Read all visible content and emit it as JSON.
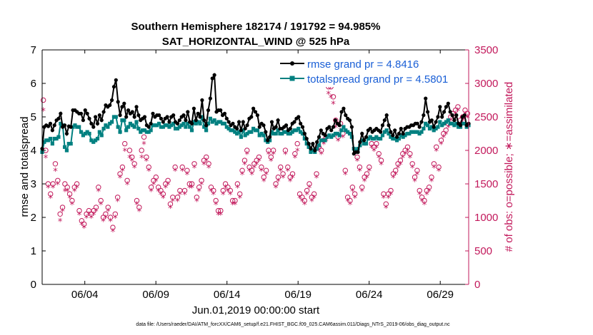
{
  "chart_data": {
    "type": "line",
    "title": "Southern Hemisphere 182174 / 191792 = 94.985%",
    "subtitle": "SAT_HORIZONTAL_WIND @ 525 hPa",
    "xlabel": "Jun.01,2019 00:00:00 start",
    "ylabel_left": "rmse and totalspread",
    "ylabel_right": "# of obs: o=possible; ∗=assimilated",
    "ylim_left": [
      0,
      7
    ],
    "ylim_right": [
      0,
      3500
    ],
    "xlim": [
      0,
      30
    ],
    "yticks_left": [
      "0",
      "1",
      "2",
      "3",
      "4",
      "5",
      "6",
      "7"
    ],
    "yticks_right": [
      "0",
      "500",
      "1000",
      "1500",
      "2000",
      "2500",
      "3000",
      "3500"
    ],
    "xticks": [
      {
        "label": "06/04",
        "day": 3
      },
      {
        "label": "06/09",
        "day": 8
      },
      {
        "label": "06/14",
        "day": 13
      },
      {
        "label": "06/19",
        "day": 18
      },
      {
        "label": "06/24",
        "day": 23
      },
      {
        "label": "06/29",
        "day": 28
      }
    ],
    "legend": [
      {
        "name": "rmse grand pr = 4.8416",
        "color": "#000000"
      },
      {
        "name": "totalspread grand pr = 4.5801",
        "color": "#008080"
      }
    ],
    "colors": {
      "rmse": "#000000",
      "spread": "#008080",
      "obs": "#c2185b"
    },
    "footer": "data file: /Users/raeder/DAI/ATM_forcXX/CAM6_setup/f.e21.FHIST_BGC.f09_025.CAM6assim.011/Diags_NTrS_2019-06/obs_diag_output.nc",
    "series": {
      "rmse": [
        4.05,
        4.7,
        4.75,
        4.72,
        4.8,
        4.6,
        4.75,
        4.9,
        4.95,
        5.1,
        4.7,
        4.75,
        4.5,
        4.72,
        4.7,
        5.2,
        5.2,
        5.15,
        5.1,
        5.1,
        4.9,
        5.2,
        5.1,
        4.95,
        4.8,
        4.7,
        5.0,
        4.8,
        5.05,
        4.9,
        5.15,
        5.35,
        5.3,
        5.35,
        5.5,
        5.9,
        6.1,
        5.45,
        5.05,
        5.3,
        5.4,
        5.0,
        5.2,
        5.1,
        5.15,
        5.0,
        5.3,
        5.05,
        4.9,
        4.95,
        5.0,
        4.75,
        4.7,
        4.8,
        5.1,
        5.0,
        5.05,
        5.05,
        4.95,
        4.85,
        4.95,
        5.0,
        4.85,
        5.0,
        5.05,
        4.85,
        4.8,
        4.9,
        5.0,
        5.05,
        4.9,
        5.15,
        4.85,
        4.8,
        5.25,
        4.9,
        5.1,
        5.0,
        5.5,
        4.9,
        4.75,
        5.2,
        5.55,
        6.15,
        6.25,
        5.15,
        5.2,
        5.2,
        5.05,
        5.1,
        4.95,
        4.85,
        4.75,
        4.8,
        4.7,
        4.65,
        4.85,
        4.6,
        4.85,
        4.65,
        4.75,
        4.95,
        5.0,
        5.25,
        5.15,
        5.05,
        4.7,
        4.8,
        4.75,
        4.55,
        4.3,
        4.4,
        4.85,
        4.65,
        4.7,
        4.9,
        4.65,
        4.65,
        4.7,
        4.75,
        4.6,
        4.65,
        4.8,
        4.85,
        4.95,
        5.0,
        4.8,
        4.7,
        4.5,
        4.35,
        4.2,
        4.05,
        4.2,
        4.0,
        4.25,
        4.4,
        4.6,
        4.5,
        4.45,
        4.65,
        4.7,
        4.6,
        4.7,
        4.9,
        4.8,
        4.75,
        5.15,
        5.25,
        5.05,
        4.95,
        4.9,
        4.7,
        3.9,
        3.95,
        3.95,
        4.25,
        4.5,
        4.3,
        4.4,
        4.6,
        4.65,
        4.55,
        4.6,
        4.65,
        4.6,
        4.55,
        4.75,
        4.9,
        5.05,
        4.75,
        4.55,
        4.45,
        4.6,
        4.4,
        4.5,
        4.65,
        4.5,
        4.65,
        4.7,
        4.7,
        4.75,
        4.75,
        4.8,
        4.8,
        4.7,
        4.85,
        5.05,
        5.55,
        5.15,
        4.85,
        4.9,
        4.7,
        4.85,
        5.0,
        5.3,
        5.0,
        5.15,
        5.3,
        5.4,
        5.15,
        5.05,
        4.9,
        5.05,
        4.8,
        4.75,
        5.0,
        5.05,
        4.75,
        4.8
      ],
      "spread": [
        3.95,
        4.25,
        4.3,
        4.3,
        4.35,
        4.2,
        4.35,
        4.35,
        4.4,
        4.8,
        4.75,
        4.1,
        4.0,
        4.2,
        4.2,
        4.7,
        4.75,
        4.7,
        4.7,
        4.55,
        4.45,
        4.5,
        4.55,
        4.5,
        4.3,
        4.25,
        4.3,
        4.35,
        4.55,
        4.45,
        4.65,
        4.75,
        4.7,
        4.8,
        4.85,
        5.0,
        5.0,
        4.7,
        4.55,
        4.9,
        4.9,
        4.6,
        4.7,
        4.8,
        4.75,
        4.7,
        4.85,
        4.65,
        4.55,
        4.6,
        4.6,
        4.55,
        4.55,
        4.6,
        4.75,
        4.75,
        4.75,
        4.8,
        4.7,
        4.7,
        4.75,
        4.75,
        4.7,
        4.75,
        4.8,
        4.65,
        4.65,
        4.7,
        4.75,
        4.8,
        4.7,
        4.8,
        4.7,
        4.6,
        4.85,
        4.8,
        4.85,
        4.8,
        5.0,
        4.7,
        4.6,
        4.8,
        4.95,
        4.85,
        4.9,
        4.8,
        4.85,
        4.85,
        4.8,
        4.8,
        4.7,
        4.65,
        4.6,
        4.6,
        4.55,
        4.5,
        4.55,
        4.4,
        4.6,
        4.45,
        4.5,
        4.55,
        4.55,
        4.65,
        4.6,
        4.6,
        4.45,
        4.5,
        4.45,
        4.3,
        4.25,
        4.3,
        4.55,
        4.5,
        4.5,
        4.6,
        4.5,
        4.5,
        4.55,
        4.55,
        4.5,
        4.5,
        4.55,
        4.6,
        4.6,
        4.65,
        4.55,
        4.5,
        4.35,
        4.2,
        4.1,
        3.95,
        4.0,
        3.95,
        4.05,
        4.15,
        4.3,
        4.3,
        4.3,
        4.4,
        4.45,
        4.4,
        4.45,
        4.5,
        4.5,
        4.45,
        4.6,
        4.7,
        4.6,
        4.55,
        4.5,
        4.4,
        4.05,
        4.0,
        4.05,
        4.15,
        4.3,
        4.2,
        4.2,
        4.35,
        4.4,
        4.35,
        4.35,
        4.4,
        4.35,
        4.35,
        4.45,
        4.55,
        4.6,
        4.5,
        4.4,
        4.35,
        4.35,
        4.3,
        4.35,
        4.45,
        4.4,
        4.45,
        4.5,
        4.5,
        4.55,
        4.55,
        4.55,
        4.55,
        4.5,
        4.55,
        4.65,
        4.8,
        4.75,
        4.65,
        4.7,
        4.6,
        4.65,
        4.7,
        4.85,
        4.75,
        4.8,
        4.85,
        4.9,
        4.8,
        4.8,
        4.75,
        4.8,
        4.7,
        4.7,
        4.8,
        4.8,
        4.7,
        4.75
      ],
      "obs_possible": [
        2750,
        2000,
        1500,
        1350,
        1500,
        1800,
        1550,
        1050,
        1150,
        1500,
        1450,
        1350,
        1250,
        1450,
        1500,
        1100,
        950,
        900,
        1050,
        1100,
        1050,
        1100,
        1150,
        1450,
        1250,
        1000,
        1050,
        1150,
        1000,
        850,
        1050,
        1300,
        1650,
        1750,
        2100,
        1550,
        2000,
        1900,
        1800,
        1250,
        1150,
        2000,
        2200,
        1900,
        1750,
        1450,
        1550,
        1600,
        1450,
        1400,
        1350,
        1500,
        1550,
        1200,
        1300,
        1750,
        1300,
        1400,
        1750,
        1400,
        1700,
        1500,
        1500,
        1800,
        1300,
        1450,
        1550,
        1850,
        1900,
        1800,
        1450,
        1400,
        1250,
        1100,
        1100,
        1400,
        1500,
        1450,
        1400,
        1250,
        1250,
        1500,
        1350,
        1700,
        1850,
        2000,
        1750,
        1700,
        1800,
        1850,
        1900,
        1750,
        1600,
        1700,
        2000,
        1900,
        2000,
        1500,
        1600,
        1750,
        1650,
        2000,
        1750,
        1600,
        1650,
        1950,
        2100,
        1350,
        1300,
        1250,
        1400,
        1500,
        1300,
        1350,
        1650,
        2050,
        2000,
        2150,
        2200,
        2950,
        2950,
        2800,
        2450,
        2200,
        2400,
        2250,
        1700,
        1300,
        1250,
        1450,
        1350,
        1900,
        1750,
        1450,
        1600,
        1650,
        1750,
        2100,
        2050,
        2100,
        1950,
        1850,
        1350,
        1200,
        1350,
        1400,
        1650,
        1700,
        1800,
        1850,
        1950,
        2000,
        2050,
        1950,
        1800,
        1600,
        1700,
        1400,
        1300,
        1250,
        1400,
        1450,
        1600,
        1800,
        2050,
        1750,
        2150,
        2250,
        2300,
        2400,
        2500,
        2550,
        2600,
        2650,
        2450,
        2500,
        2600,
        2550
      ],
      "obs_assimilated": [
        2600,
        1900,
        1450,
        1300,
        1450,
        1700,
        1500,
        950,
        1100,
        1400,
        1400,
        1300,
        1200,
        1400,
        1450,
        1050,
        900,
        850,
        1000,
        1050,
        1000,
        1050,
        1100,
        1400,
        1200,
        950,
        1000,
        1100,
        950,
        800,
        1000,
        1250,
        1600,
        1700,
        2000,
        1500,
        1900,
        1850,
        1750,
        1200,
        1100,
        1900,
        2100,
        1850,
        1700,
        1400,
        1500,
        1550,
        1400,
        1350,
        1300,
        1450,
        1500,
        1150,
        1250,
        1700,
        1250,
        1350,
        1700,
        1350,
        1650,
        1450,
        1450,
        1750,
        1250,
        1400,
        1500,
        1800,
        1850,
        1750,
        1400,
        1350,
        1200,
        1050,
        1050,
        1350,
        1450,
        1400,
        1350,
        1200,
        1200,
        1450,
        1300,
        1650,
        1800,
        1950,
        1700,
        1650,
        1750,
        1800,
        1850,
        1700,
        1550,
        1650,
        1950,
        1850,
        1950,
        1450,
        1550,
        1700,
        1600,
        1950,
        1700,
        1550,
        1600,
        1900,
        2000,
        1300,
        1250,
        1200,
        1350,
        1450,
        1250,
        1300,
        1600,
        2000,
        1950,
        2100,
        2150,
        2850,
        2800,
        2700,
        2350,
        2150,
        2300,
        2200,
        1650,
        1250,
        1200,
        1400,
        1300,
        1850,
        1700,
        1400,
        1550,
        1600,
        1700,
        2050,
        2000,
        2050,
        1900,
        1800,
        1300,
        1150,
        1300,
        1350,
        1600,
        1650,
        1750,
        1800,
        1900,
        1950,
        2000,
        1900,
        1750,
        1550,
        1650,
        1350,
        1250,
        1200,
        1350,
        1400,
        1550,
        1750,
        2000,
        1700,
        2100,
        2200,
        2250,
        2350,
        2450,
        2500,
        2550,
        2600,
        2400,
        2450,
        2550,
        2500
      ]
    }
  }
}
